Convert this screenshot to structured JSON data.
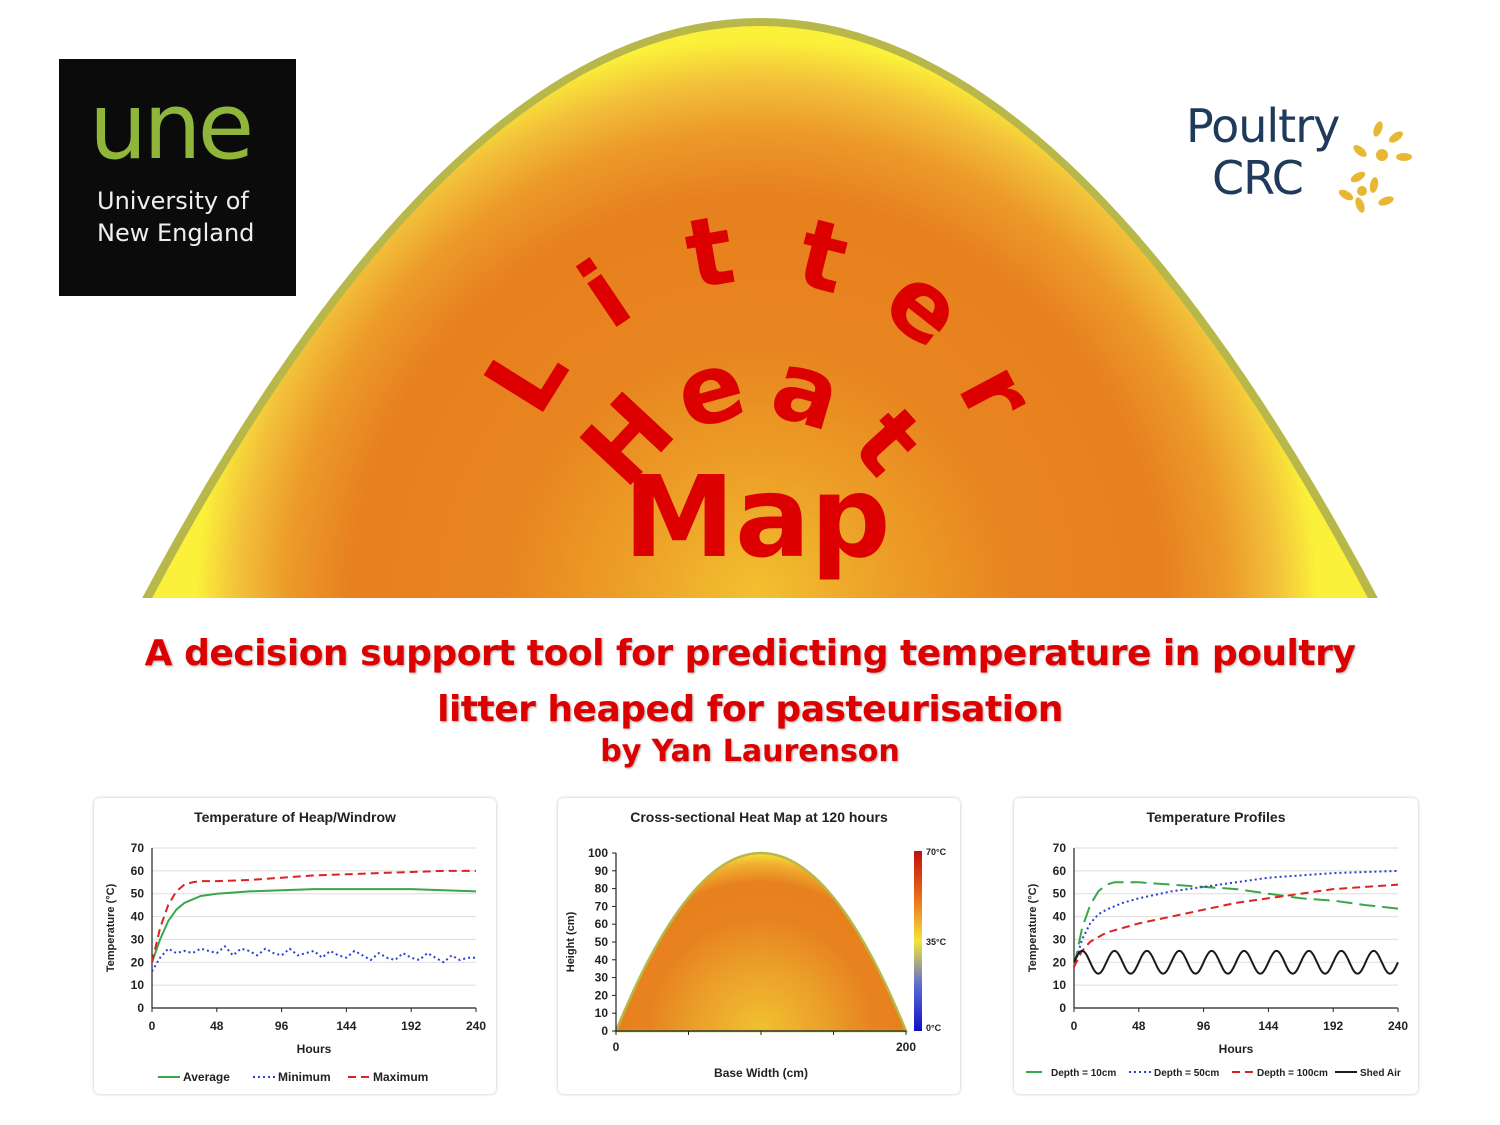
{
  "hero": {
    "title_line1": "Litter",
    "title_line2": "Heat",
    "title_line3": "Map",
    "colors": {
      "title": "#dd0000",
      "heap_inner": "#f2c130",
      "heap_mid": "#e8801f",
      "heap_rim": "#faf23a",
      "heap_outline": "#b8b84a"
    }
  },
  "une_logo": {
    "mark": "une",
    "line1": "University of",
    "line2": "New England"
  },
  "crc_logo": {
    "line1": "Poultry",
    "line2": "CRC",
    "icon": "wheat-icon"
  },
  "subtitle": {
    "line1": "A decision support tool for predicting temperature in poultry",
    "line2": "litter heaped for pasteurisation"
  },
  "byline": "by Yan Laurenson",
  "chart_data": [
    {
      "type": "line",
      "title": "Temperature of Heap/Windrow",
      "xlabel": "Hours",
      "ylabel": "Temperature (°C)",
      "xlim": [
        0,
        240
      ],
      "ylim": [
        0,
        70
      ],
      "xticks": [
        0,
        48,
        96,
        144,
        192,
        240
      ],
      "yticks": [
        0,
        10,
        20,
        30,
        40,
        50,
        60,
        70
      ],
      "legend": "bottom",
      "series": [
        {
          "name": "Average",
          "color": "#3aa64a",
          "style": "solid",
          "x": [
            0,
            6,
            12,
            18,
            24,
            36,
            48,
            72,
            96,
            120,
            144,
            168,
            192,
            216,
            240
          ],
          "y": [
            20,
            30,
            38,
            43,
            46,
            49,
            50,
            51,
            51.5,
            52,
            52,
            52,
            52,
            51.5,
            51
          ]
        },
        {
          "name": "Minimum",
          "color": "#2a3fd0",
          "style": "dotted",
          "x": [
            0,
            6,
            12,
            18,
            24,
            30,
            36,
            42,
            48,
            54,
            60,
            66,
            72,
            78,
            84,
            90,
            96,
            102,
            108,
            114,
            120,
            126,
            132,
            138,
            144,
            150,
            156,
            162,
            168,
            174,
            180,
            186,
            192,
            198,
            204,
            210,
            216,
            222,
            228,
            234,
            240
          ],
          "y": [
            16,
            22,
            26,
            24,
            25,
            24,
            26,
            25,
            24,
            27,
            23,
            26,
            25,
            23,
            26,
            24,
            23,
            26,
            23,
            24,
            25,
            22,
            25,
            23,
            22,
            25,
            23,
            21,
            24,
            22,
            21,
            24,
            22,
            21,
            24,
            22,
            20,
            23,
            21,
            22,
            22
          ]
        },
        {
          "name": "Maximum",
          "color": "#dd2222",
          "style": "dashed",
          "x": [
            0,
            6,
            12,
            18,
            24,
            30,
            36,
            48,
            72,
            96,
            120,
            144,
            168,
            192,
            216,
            240
          ],
          "y": [
            20,
            35,
            45,
            51,
            54,
            55,
            55.5,
            55.5,
            56,
            57,
            58,
            58.5,
            59,
            59.5,
            60,
            60
          ]
        }
      ]
    },
    {
      "type": "heatmap",
      "title": "Cross-sectional Heat Map at 120 hours",
      "xlabel": "Base Width (cm)",
      "ylabel": "Height (cm)",
      "xlim": [
        0,
        200
      ],
      "ylim": [
        0,
        100
      ],
      "xticks": [
        0,
        200
      ],
      "yticks": [
        0,
        10,
        20,
        30,
        40,
        50,
        60,
        70,
        80,
        90,
        100
      ],
      "colorbar": {
        "max_label": "70°C",
        "mid_label": "35°C",
        "min_label": "0°C"
      },
      "heap": {
        "base_width": 200,
        "peak_height": 100,
        "core_temperature": 52,
        "surface_temperature": 35
      }
    },
    {
      "type": "line",
      "title": "Temperature Profiles",
      "xlabel": "Hours",
      "ylabel": "Temperature (°C)",
      "xlim": [
        0,
        240
      ],
      "ylim": [
        0,
        70
      ],
      "xticks": [
        0,
        48,
        96,
        144,
        192,
        240
      ],
      "yticks": [
        0,
        10,
        20,
        30,
        40,
        50,
        60,
        70
      ],
      "legend": "bottom",
      "series": [
        {
          "name": "Depth = 10cm",
          "color": "#3aa64a",
          "style": "longdash",
          "x": [
            0,
            6,
            12,
            18,
            24,
            30,
            36,
            48,
            72,
            96,
            120,
            144,
            168,
            192,
            216,
            240
          ],
          "y": [
            18,
            35,
            45,
            51,
            54,
            55,
            55,
            55,
            54,
            53,
            52,
            50,
            48,
            47,
            45,
            43.5
          ]
        },
        {
          "name": "Depth = 50cm",
          "color": "#2a3fd0",
          "style": "dotted",
          "x": [
            0,
            6,
            12,
            18,
            24,
            36,
            48,
            72,
            96,
            120,
            144,
            168,
            192,
            216,
            240
          ],
          "y": [
            18,
            30,
            37,
            41,
            43,
            46,
            48,
            51,
            53,
            55,
            57,
            58,
            59,
            59.5,
            60
          ]
        },
        {
          "name": "Depth = 100cm",
          "color": "#dd2222",
          "style": "dashed",
          "x": [
            0,
            6,
            12,
            18,
            24,
            36,
            48,
            72,
            96,
            120,
            144,
            168,
            192,
            216,
            240
          ],
          "y": [
            18,
            25,
            29,
            31,
            33,
            35,
            37,
            40,
            43,
            46,
            48,
            50,
            52,
            53,
            54
          ]
        },
        {
          "name": "Shed Air",
          "color": "#1a1a1a",
          "style": "solid",
          "wave": {
            "mean": 20,
            "amplitude": 5,
            "period_hours": 24
          }
        }
      ]
    }
  ]
}
